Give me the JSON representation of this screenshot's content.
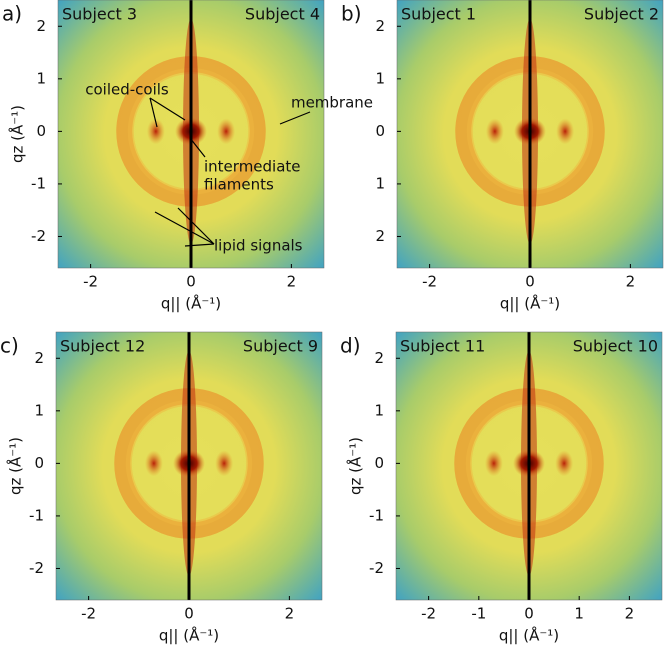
{
  "chart_data": [
    {
      "type": "heatmap",
      "label": "a)",
      "left_title": "Subject 3",
      "right_title": "Subject 4",
      "xlabel": "q|| (Å⁻¹)",
      "ylabel": "qz (Å⁻¹)",
      "xlim": [
        -2.65,
        2.65
      ],
      "ylim": [
        -2.6,
        2.5
      ],
      "xticks": [
        -2,
        0,
        2
      ],
      "yticks": [
        -2,
        -1,
        0,
        1,
        2
      ],
      "annotations": [
        {
          "text": "coiled-coils"
        },
        {
          "text": "membrane"
        },
        {
          "text": [
            "intermediate",
            "filaments"
          ]
        },
        {
          "text": "lipid signals"
        }
      ]
    },
    {
      "type": "heatmap",
      "label": "b)",
      "left_title": "Subject 1",
      "right_title": "Subject 2",
      "xlabel": "q|| (Å⁻¹)",
      "xlim": [
        -2.65,
        2.65
      ],
      "ylim": [
        -2.6,
        2.5
      ],
      "xticks": [
        -2,
        0,
        2
      ],
      "yticks": [
        {
          "value": -2,
          "label": "2"
        },
        {
          "value": -1,
          "label": "1"
        },
        0,
        1,
        2
      ]
    },
    {
      "type": "heatmap",
      "label": "c)",
      "left_title": "Subject 12",
      "right_title": "Subject 9",
      "xlabel": "q|| (Å⁻¹)",
      "ylabel": "qz (Å⁻¹)",
      "xlim": [
        -2.65,
        2.65
      ],
      "ylim": [
        -2.6,
        2.5
      ],
      "xticks": [
        -2,
        0,
        2
      ],
      "yticks": [
        -2,
        -1,
        0,
        1,
        2
      ]
    },
    {
      "type": "heatmap",
      "label": "d)",
      "left_title": "Subject 11",
      "right_title": "Subject 10",
      "xlabel": "q|| (Å⁻¹)",
      "ylabel": "qz (Å⁻¹)",
      "xlim": [
        -2.65,
        2.65
      ],
      "ylim": [
        -2.6,
        2.5
      ],
      "xticks": [
        -2,
        -1,
        0,
        1,
        2
      ],
      "yticks": [
        -2,
        -1,
        0,
        1,
        2
      ]
    }
  ]
}
